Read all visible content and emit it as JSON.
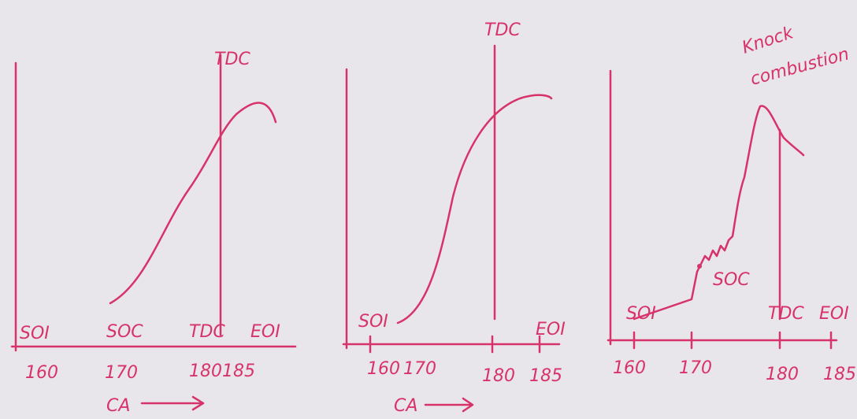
{
  "panels": [
    {
      "top_label": "TDC",
      "labels": [
        "SOI",
        "SOC",
        "TDC",
        "EOI"
      ],
      "ticks": [
        "160",
        "170",
        "180",
        "185"
      ],
      "axis_label": "CA"
    },
    {
      "top_label": "TDC",
      "labels": [
        "SOI",
        "EOI"
      ],
      "ticks": [
        "160",
        "170",
        "180",
        "185"
      ],
      "axis_label": "CA"
    },
    {
      "top_label": "Knock",
      "annotation": "combustion",
      "labels": [
        "SOI",
        "SOC",
        "TDC",
        "EOI"
      ],
      "ticks": [
        "160",
        "170",
        "180",
        "185"
      ]
    }
  ]
}
